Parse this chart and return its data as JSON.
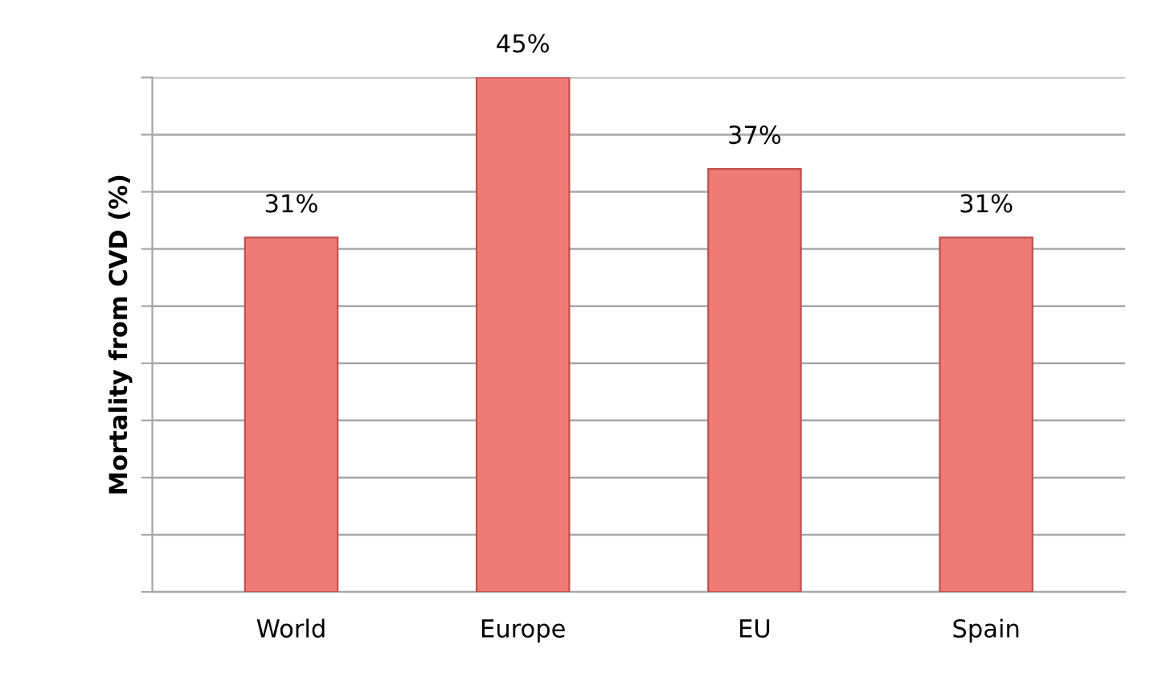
{
  "chart_data": {
    "type": "bar",
    "ylabel": "Mortality from CVD (%)",
    "categories": [
      "World",
      "Europe",
      "EU",
      "Spain"
    ],
    "values": [
      31,
      45,
      37,
      31
    ],
    "value_labels": [
      "31%",
      "45%",
      "37%",
      "31%"
    ],
    "color": "#ee7b77",
    "ylim": [
      0,
      45
    ],
    "yticks": [
      {
        "value": 0,
        "label": null
      },
      {
        "value": 5,
        "label": null
      },
      {
        "value": 10,
        "label": null
      },
      {
        "value": 15,
        "label": null
      },
      {
        "value": 20,
        "label": null
      },
      {
        "value": 25,
        "label": null
      },
      {
        "value": 30,
        "label": null
      },
      {
        "value": 35,
        "label": null
      },
      {
        "value": 40,
        "label": null
      },
      {
        "value": 45,
        "label": null
      }
    ],
    "tick_labels": "x",
    "grid": "y",
    "legend": false
  }
}
